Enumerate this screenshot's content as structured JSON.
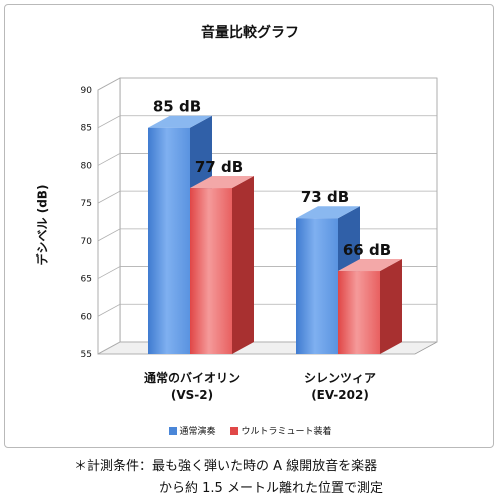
{
  "chart_data": {
    "type": "bar",
    "title": "音量比較グラフ",
    "ylabel": "デシベル (dB)",
    "xlabel": "",
    "ylim": [
      55,
      90
    ],
    "yticks": [
      55,
      60,
      65,
      70,
      75,
      80,
      85,
      90
    ],
    "categories": [
      {
        "line1": "通常のバイオリン",
        "line2": "(VS-2)"
      },
      {
        "line1": "シレンツィア",
        "line2": "(EV-202)"
      }
    ],
    "series": [
      {
        "name": "通常演奏",
        "values": [
          85,
          73
        ],
        "labels": [
          "85 dB",
          "73 dB"
        ],
        "color": "#4a86d8"
      },
      {
        "name": "ウルトラミュート装着",
        "values": [
          77,
          66
        ],
        "labels": [
          "77 dB",
          "66 dB"
        ],
        "color": "#e04848"
      }
    ],
    "grid": true,
    "legend_position": "bottom",
    "three_d": true
  },
  "footnote": {
    "line1": "＊計測条件：最も強く弾いた時の A 線開放音を楽器",
    "line2": "から約 1.5 メートル離れた位置で測定"
  }
}
